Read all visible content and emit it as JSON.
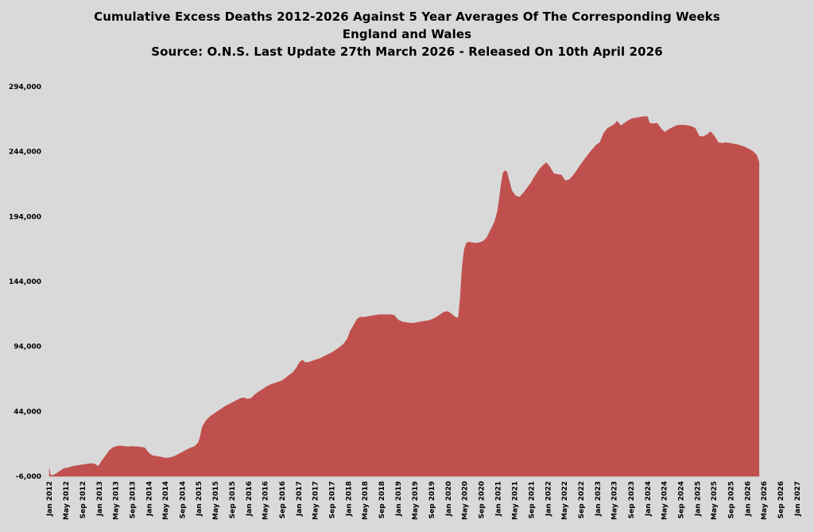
{
  "chart_data": {
    "type": "area",
    "title_lines": [
      "Cumulative Excess Deaths 2012-2026 Against 5 Year Averages Of The Corresponding Weeks",
      "England and Wales",
      "Source: O.N.S. Last Update 27th March 2026 - Released On 10th April 2026"
    ],
    "xlabel": "",
    "ylabel": "",
    "ylim": [
      -6000,
      294000
    ],
    "yticks": [
      -6000,
      44000,
      94000,
      144000,
      194000,
      244000,
      294000
    ],
    "ytick_labels": [
      "-6,000",
      "44,000",
      "94,000",
      "144,000",
      "194,000",
      "244,000",
      "294,000"
    ],
    "xlim": [
      "2012-01",
      "2027-01"
    ],
    "xticks": [
      "2012-01",
      "2012-05",
      "2012-09",
      "2013-01",
      "2013-05",
      "2013-09",
      "2014-01",
      "2014-05",
      "2014-09",
      "2015-01",
      "2015-05",
      "2015-09",
      "2016-01",
      "2016-05",
      "2016-09",
      "2017-01",
      "2017-05",
      "2017-09",
      "2018-01",
      "2018-05",
      "2018-09",
      "2019-01",
      "2019-05",
      "2019-09",
      "2020-01",
      "2020-05",
      "2020-09",
      "2021-01",
      "2021-05",
      "2021-09",
      "2022-01",
      "2022-05",
      "2022-09",
      "2023-01",
      "2023-05",
      "2023-09",
      "2024-01",
      "2024-05",
      "2024-09",
      "2025-01",
      "2025-05",
      "2025-09",
      "2026-01",
      "2026-05",
      "2026-09",
      "2027-01"
    ],
    "xtick_labels": [
      "Jan 2012",
      "May 2012",
      "Sep 2012",
      "Jan 2013",
      "May 2013",
      "Sep 2013",
      "Jan 2014",
      "May 2014",
      "Sep 2014",
      "Jan 2015",
      "May 2015",
      "Sep 2015",
      "Jan 2016",
      "May 2016",
      "Sep 2016",
      "Jan 2017",
      "May 2017",
      "Sep 2017",
      "Jan 2018",
      "May 2018",
      "Sep 2018",
      "Jan 2019",
      "May 2019",
      "Sep 2019",
      "Jan 2020",
      "May 2020",
      "Sep 2020",
      "Jan 2021",
      "May 2021",
      "Sep 2021",
      "Jan 2022",
      "May 2022",
      "Sep 2022",
      "Jan 2023",
      "May 2023",
      "Sep 2023",
      "Jan 2024",
      "May 2024",
      "Sep 2024",
      "Jan 2025",
      "May 2025",
      "Sep 2025",
      "Jan 2026",
      "May 2026",
      "Sep 2026",
      "Jan 2027"
    ],
    "grid": false,
    "legend": "none",
    "series": [
      {
        "color": "#c0504d",
        "points": [
          [
            "2012-01-01",
            0
          ],
          [
            "2012-01-08",
            -4500
          ],
          [
            "2012-01-22",
            -5500
          ],
          [
            "2012-02-19",
            -4000
          ],
          [
            "2012-03-18",
            -2000
          ],
          [
            "2012-04-15",
            0
          ],
          [
            "2012-05-13",
            500
          ],
          [
            "2012-06-10",
            1500
          ],
          [
            "2012-07-08",
            2000
          ],
          [
            "2012-08-05",
            2500
          ],
          [
            "2012-09-02",
            3000
          ],
          [
            "2012-10-07",
            3500
          ],
          [
            "2012-11-04",
            4000
          ],
          [
            "2012-12-02",
            3500
          ],
          [
            "2012-12-16",
            2000
          ],
          [
            "2012-12-30",
            2500
          ],
          [
            "2013-01-20",
            6000
          ],
          [
            "2013-02-17",
            10000
          ],
          [
            "2013-03-17",
            14000
          ],
          [
            "2013-04-07",
            16000
          ],
          [
            "2013-05-05",
            17000
          ],
          [
            "2013-06-02",
            17500
          ],
          [
            "2013-07-07",
            17000
          ],
          [
            "2013-08-04",
            16800
          ],
          [
            "2013-09-01",
            17000
          ],
          [
            "2013-10-06",
            16800
          ],
          [
            "2013-11-03",
            16500
          ],
          [
            "2013-12-01",
            16000
          ],
          [
            "2013-12-29",
            12000
          ],
          [
            "2014-01-26",
            10000
          ],
          [
            "2014-02-23",
            9500
          ],
          [
            "2014-03-23",
            9000
          ],
          [
            "2014-04-13",
            8500
          ],
          [
            "2014-05-11",
            8000
          ],
          [
            "2014-06-08",
            8500
          ],
          [
            "2014-07-06",
            9500
          ],
          [
            "2014-08-03",
            11000
          ],
          [
            "2014-09-07",
            13000
          ],
          [
            "2014-10-05",
            14500
          ],
          [
            "2014-11-02",
            16000
          ],
          [
            "2014-11-30",
            17000
          ],
          [
            "2014-12-28",
            20000
          ],
          [
            "2015-01-11",
            25000
          ],
          [
            "2015-01-25",
            32000
          ],
          [
            "2015-02-22",
            37000
          ],
          [
            "2015-03-22",
            40000
          ],
          [
            "2015-04-19",
            42000
          ],
          [
            "2015-05-17",
            44000
          ],
          [
            "2015-06-14",
            46000
          ],
          [
            "2015-07-12",
            48000
          ],
          [
            "2015-08-09",
            49500
          ],
          [
            "2015-09-06",
            51000
          ],
          [
            "2015-10-04",
            52500
          ],
          [
            "2015-11-01",
            54000
          ],
          [
            "2015-11-29",
            54500
          ],
          [
            "2015-12-20",
            53500
          ],
          [
            "2016-01-17",
            54000
          ],
          [
            "2016-02-14",
            57000
          ],
          [
            "2016-03-13",
            59000
          ],
          [
            "2016-04-10",
            61000
          ],
          [
            "2016-05-08",
            63000
          ],
          [
            "2016-06-05",
            64500
          ],
          [
            "2016-07-03",
            65500
          ],
          [
            "2016-07-31",
            66500
          ],
          [
            "2016-08-28",
            67500
          ],
          [
            "2016-09-25",
            69500
          ],
          [
            "2016-10-23",
            72000
          ],
          [
            "2016-11-20",
            74000
          ],
          [
            "2016-12-18",
            78000
          ],
          [
            "2017-01-08",
            82000
          ],
          [
            "2017-01-29",
            83500
          ],
          [
            "2017-02-19",
            81500
          ],
          [
            "2017-03-19",
            82000
          ],
          [
            "2017-04-16",
            83000
          ],
          [
            "2017-05-14",
            84000
          ],
          [
            "2017-06-11",
            85000
          ],
          [
            "2017-07-09",
            86500
          ],
          [
            "2017-08-06",
            88000
          ],
          [
            "2017-09-03",
            89500
          ],
          [
            "2017-10-01",
            91500
          ],
          [
            "2017-10-29",
            93500
          ],
          [
            "2017-11-26",
            96000
          ],
          [
            "2017-12-24",
            100000
          ],
          [
            "2018-01-14",
            106000
          ],
          [
            "2018-02-11",
            111000
          ],
          [
            "2018-03-04",
            115000
          ],
          [
            "2018-03-25",
            116500
          ],
          [
            "2018-04-22",
            116500
          ],
          [
            "2018-05-20",
            117000
          ],
          [
            "2018-06-17",
            117500
          ],
          [
            "2018-07-15",
            118000
          ],
          [
            "2018-08-12",
            118500
          ],
          [
            "2018-09-09",
            118500
          ],
          [
            "2018-10-07",
            118500
          ],
          [
            "2018-11-04",
            118500
          ],
          [
            "2018-12-02",
            118000
          ],
          [
            "2018-12-30",
            114500
          ],
          [
            "2019-01-27",
            113000
          ],
          [
            "2019-02-24",
            112500
          ],
          [
            "2019-03-24",
            112000
          ],
          [
            "2019-04-21",
            112000
          ],
          [
            "2019-05-19",
            112500
          ],
          [
            "2019-06-16",
            113000
          ],
          [
            "2019-07-14",
            113500
          ],
          [
            "2019-08-11",
            114000
          ],
          [
            "2019-09-08",
            115000
          ],
          [
            "2019-10-06",
            116500
          ],
          [
            "2019-11-03",
            118500
          ],
          [
            "2019-12-01",
            120500
          ],
          [
            "2019-12-29",
            121000
          ],
          [
            "2020-01-26",
            119000
          ],
          [
            "2020-02-23",
            116500
          ],
          [
            "2020-03-15",
            116000
          ],
          [
            "2020-03-29",
            132000
          ],
          [
            "2020-04-12",
            155000
          ],
          [
            "2020-04-26",
            168000
          ],
          [
            "2020-05-10",
            173000
          ],
          [
            "2020-05-24",
            174500
          ],
          [
            "2020-06-21",
            174000
          ],
          [
            "2020-07-19",
            173500
          ],
          [
            "2020-08-16",
            174000
          ],
          [
            "2020-09-13",
            175000
          ],
          [
            "2020-10-11",
            178000
          ],
          [
            "2020-11-08",
            184000
          ],
          [
            "2020-12-06",
            190000
          ],
          [
            "2020-12-27",
            198000
          ],
          [
            "2021-01-10",
            208000
          ],
          [
            "2021-01-24",
            220000
          ],
          [
            "2021-02-07",
            228000
          ],
          [
            "2021-02-21",
            229500
          ],
          [
            "2021-03-07",
            228000
          ],
          [
            "2021-03-21",
            222000
          ],
          [
            "2021-04-11",
            214000
          ],
          [
            "2021-05-09",
            210000
          ],
          [
            "2021-06-06",
            209000
          ],
          [
            "2021-07-04",
            212000
          ],
          [
            "2021-08-01",
            216000
          ],
          [
            "2021-08-29",
            220000
          ],
          [
            "2021-09-26",
            225000
          ],
          [
            "2021-10-24",
            229500
          ],
          [
            "2021-11-21",
            233000
          ],
          [
            "2021-12-19",
            235500
          ],
          [
            "2022-01-16",
            232000
          ],
          [
            "2022-02-13",
            227000
          ],
          [
            "2022-03-13",
            226500
          ],
          [
            "2022-04-10",
            226000
          ],
          [
            "2022-05-08",
            221500
          ],
          [
            "2022-06-05",
            222500
          ],
          [
            "2022-07-03",
            225500
          ],
          [
            "2022-07-31",
            229500
          ],
          [
            "2022-08-28",
            234000
          ],
          [
            "2022-09-25",
            238000
          ],
          [
            "2022-10-23",
            242000
          ],
          [
            "2022-11-20",
            245500
          ],
          [
            "2022-12-18",
            249000
          ],
          [
            "2023-01-15",
            251000
          ],
          [
            "2023-02-12",
            258000
          ],
          [
            "2023-03-12",
            262000
          ],
          [
            "2023-04-09",
            263500
          ],
          [
            "2023-05-07",
            265500
          ],
          [
            "2023-05-21",
            267500
          ],
          [
            "2023-06-04",
            266000
          ],
          [
            "2023-06-18",
            264000
          ],
          [
            "2023-07-16",
            266000
          ],
          [
            "2023-08-13",
            268000
          ],
          [
            "2023-09-10",
            269500
          ],
          [
            "2023-10-08",
            270000
          ],
          [
            "2023-11-05",
            270500
          ],
          [
            "2023-12-03",
            271000
          ],
          [
            "2023-12-31",
            271000
          ],
          [
            "2024-01-14",
            266000
          ],
          [
            "2024-02-11",
            265500
          ],
          [
            "2024-03-10",
            266000
          ],
          [
            "2024-04-07",
            262000
          ],
          [
            "2024-05-05",
            259000
          ],
          [
            "2024-06-02",
            261000
          ],
          [
            "2024-06-30",
            262500
          ],
          [
            "2024-07-28",
            264000
          ],
          [
            "2024-08-25",
            264500
          ],
          [
            "2024-09-22",
            264500
          ],
          [
            "2024-10-20",
            264000
          ],
          [
            "2024-11-17",
            263500
          ],
          [
            "2024-12-15",
            262000
          ],
          [
            "2025-01-12",
            256000
          ],
          [
            "2025-02-09",
            255500
          ],
          [
            "2025-03-09",
            257000
          ],
          [
            "2025-04-06",
            259500
          ],
          [
            "2025-05-04",
            256000
          ],
          [
            "2025-06-01",
            251000
          ],
          [
            "2025-06-29",
            250500
          ],
          [
            "2025-07-27",
            251000
          ],
          [
            "2025-08-24",
            250500
          ],
          [
            "2025-09-21",
            250000
          ],
          [
            "2025-10-19",
            249500
          ],
          [
            "2025-11-16",
            248500
          ],
          [
            "2025-12-14",
            247500
          ],
          [
            "2026-01-11",
            246000
          ],
          [
            "2026-02-08",
            244500
          ],
          [
            "2026-03-08",
            241500
          ],
          [
            "2026-03-27",
            236000
          ]
        ]
      }
    ]
  }
}
